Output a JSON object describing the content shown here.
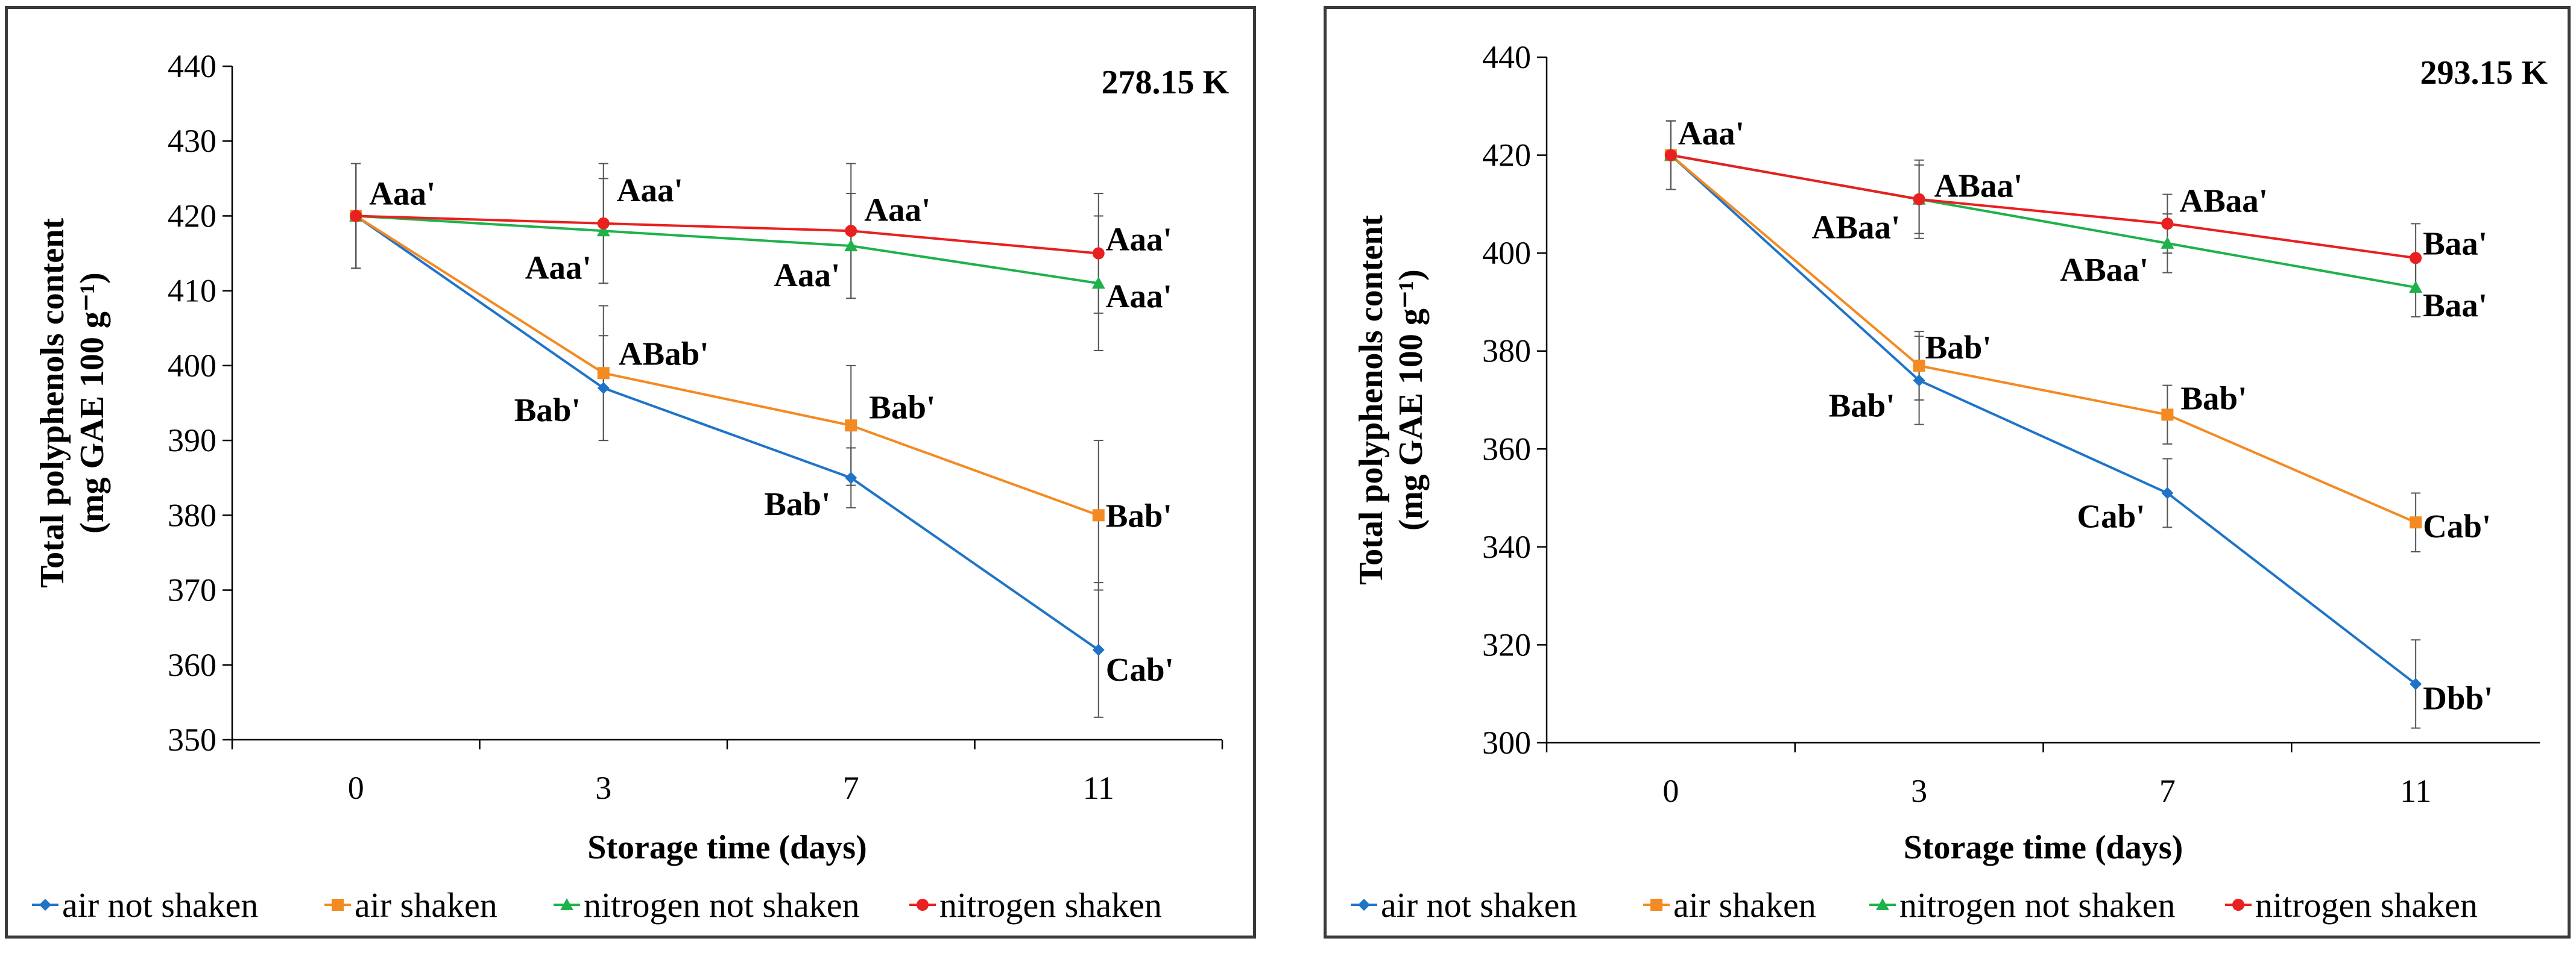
{
  "chart_data": [
    {
      "type": "line",
      "title": "278.15 K",
      "xlabel": "Storage time (days)",
      "ylabel": "Total polyphenols content",
      "ylabel_units": "(mg GAE 100 g⁻¹)",
      "x": [
        0,
        3,
        7,
        11
      ],
      "ylim": [
        350,
        440
      ],
      "ytick_step": 10,
      "series": [
        {
          "name": "air not shaken",
          "color": "#1f74c8",
          "marker": "diamond",
          "values": [
            420,
            397,
            385,
            362
          ],
          "errors": [
            7,
            7,
            4,
            9
          ],
          "labels": [
            "",
            "Bab'",
            "Bab'",
            "Cab'"
          ]
        },
        {
          "name": "air shaken",
          "color": "#f38a22",
          "marker": "square",
          "values": [
            420,
            399,
            392,
            380
          ],
          "errors": [
            7,
            9,
            8,
            10
          ],
          "labels": [
            "",
            "ABab'",
            "Bab'",
            "Bab'"
          ]
        },
        {
          "name": "nitrogen not shaken",
          "color": "#1eb24a",
          "marker": "triangle",
          "values": [
            420,
            418,
            416,
            411
          ],
          "errors": [
            7,
            7,
            7,
            9
          ],
          "labels": [
            "",
            "Aaa'",
            "Aaa'",
            "Aaa'"
          ]
        },
        {
          "name": "nitrogen shaken",
          "color": "#e8201f",
          "marker": "circle",
          "values": [
            420,
            419,
            418,
            415
          ],
          "errors": [
            7,
            8,
            9,
            8
          ],
          "labels": [
            "Aaa'",
            "Aaa'",
            "Aaa'",
            "Aaa'"
          ]
        }
      ]
    },
    {
      "type": "line",
      "title": "293.15 K",
      "xlabel": "Storage time (days)",
      "ylabel": "Total polyphenols content",
      "ylabel_units": "(mg GAE 100 g⁻¹)",
      "x": [
        0,
        3,
        7,
        11
      ],
      "ylim": [
        300,
        440
      ],
      "ytick_step": 20,
      "series": [
        {
          "name": "air not shaken",
          "color": "#1f74c8",
          "marker": "diamond",
          "values": [
            420,
            374,
            351,
            312
          ],
          "errors": [
            7,
            9,
            7,
            9
          ],
          "labels": [
            "",
            "Bab'",
            "Cab'",
            "Dbb'"
          ]
        },
        {
          "name": "air shaken",
          "color": "#f38a22",
          "marker": "square",
          "values": [
            420,
            377,
            367,
            345
          ],
          "errors": [
            7,
            7,
            6,
            6
          ],
          "labels": [
            "",
            "Bab'",
            "Bab'",
            "Cab'"
          ]
        },
        {
          "name": "nitrogen not shaken",
          "color": "#1eb24a",
          "marker": "triangle",
          "values": [
            420,
            411,
            402,
            393
          ],
          "errors": [
            7,
            7,
            6,
            6
          ],
          "labels": [
            "",
            "ABaa'",
            "ABaa'",
            "Baa'"
          ]
        },
        {
          "name": "nitrogen shaken",
          "color": "#e8201f",
          "marker": "circle",
          "values": [
            420,
            411,
            406,
            399
          ],
          "errors": [
            7,
            8,
            6,
            7
          ],
          "labels": [
            "Aaa'",
            "ABaa'",
            "ABaa'",
            "Baa'"
          ]
        }
      ]
    }
  ]
}
